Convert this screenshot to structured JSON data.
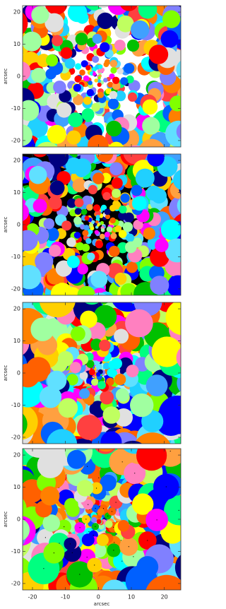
{
  "chart_data": [
    {
      "type": "map",
      "ylabel": "arcsec",
      "xlim": [
        -23,
        25
      ],
      "ylim": [
        -22,
        22
      ],
      "xticks": [
        -20,
        -10,
        0,
        10,
        20
      ],
      "yticks": [
        20,
        10,
        0,
        -10,
        -20
      ],
      "background": "#ffffff"
    },
    {
      "type": "map",
      "ylabel": "arcsec",
      "xlim": [
        -23,
        25
      ],
      "ylim": [
        -22,
        22
      ],
      "xticks": [
        -20,
        -10,
        0,
        10,
        20
      ],
      "yticks": [
        20,
        10,
        0,
        -10,
        -20
      ],
      "background": "#000000"
    },
    {
      "type": "map",
      "ylabel": "arcsec",
      "xlim": [
        -23,
        25
      ],
      "ylim": [
        -22,
        22
      ],
      "xticks": [
        -20,
        -10,
        0,
        10,
        20
      ],
      "yticks": [
        20,
        10,
        0,
        -10,
        -20
      ],
      "background": "#a8f4fa"
    },
    {
      "type": "map",
      "xlabel": "arcsec",
      "ylabel": "arcsec",
      "xlim": [
        -23,
        25
      ],
      "ylim": [
        -22,
        22
      ],
      "xticks": [
        -20,
        -10,
        0,
        10,
        20
      ],
      "yticks": [
        20,
        10,
        0,
        -10,
        -20
      ],
      "background": "#8ef0f5"
    }
  ]
}
